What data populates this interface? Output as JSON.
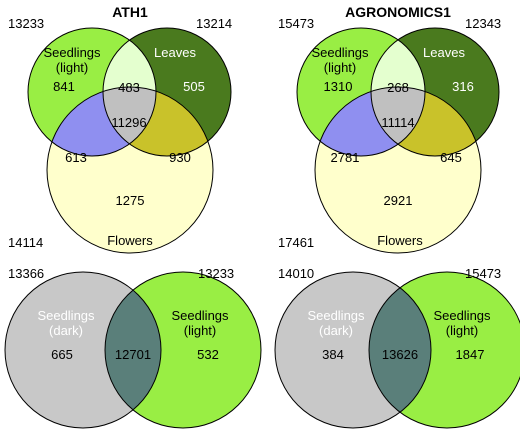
{
  "panels": [
    {
      "title": "ATH1",
      "totals": {
        "seedlings": "13233",
        "leaves": "13214",
        "flowers": "14114"
      },
      "labels": {
        "seedlings_1": "Seedlings",
        "seedlings_2": "(light)",
        "leaves": "Leaves",
        "flowers": "Flowers"
      },
      "regions": {
        "seedlings_only": "841",
        "seedlings_leaves": "483",
        "leaves_only": "505",
        "all_three": "11296",
        "seedlings_flowers": "613",
        "leaves_flowers": "930",
        "flowers_only": "1275"
      }
    },
    {
      "title": "AGRONOMICS1",
      "totals": {
        "seedlings": "15473",
        "leaves": "12343",
        "flowers": "17461"
      },
      "labels": {
        "seedlings_1": "Seedlings",
        "seedlings_2": "(light)",
        "leaves": "Leaves",
        "flowers": "Flowers"
      },
      "regions": {
        "seedlings_only": "1310",
        "seedlings_leaves": "268",
        "leaves_only": "316",
        "all_three": "11114",
        "seedlings_flowers": "2781",
        "leaves_flowers": "645",
        "flowers_only": "2921"
      }
    }
  ],
  "two_way": [
    {
      "totals": {
        "dark": "13366",
        "light": "13233"
      },
      "labels": {
        "dark_1": "Seedlings",
        "dark_2": "(dark)",
        "light_1": "Seedlings",
        "light_2": "(light)"
      },
      "regions": {
        "dark_only": "665",
        "both": "12701",
        "light_only": "532"
      }
    },
    {
      "totals": {
        "dark": "14010",
        "light": "15473"
      },
      "labels": {
        "dark_1": "Seedlings",
        "dark_2": "(dark)",
        "light_1": "Seedlings",
        "light_2": "(light)"
      },
      "regions": {
        "dark_only": "384",
        "both": "13626",
        "light_only": "1847"
      }
    }
  ],
  "colors": {
    "seedlings_light": "#99ee44",
    "leaves": "#4a7a1e",
    "flowers": "#ffffcc",
    "seedlings_leaves": "#e4ffcf",
    "seedlings_flowers": "#8f8ff0",
    "leaves_flowers": "#c9c22a",
    "all_three": "#c0c0c0",
    "seedlings_dark": "#c8c8c8",
    "dark_light_overlap": "#5a7f7a"
  }
}
